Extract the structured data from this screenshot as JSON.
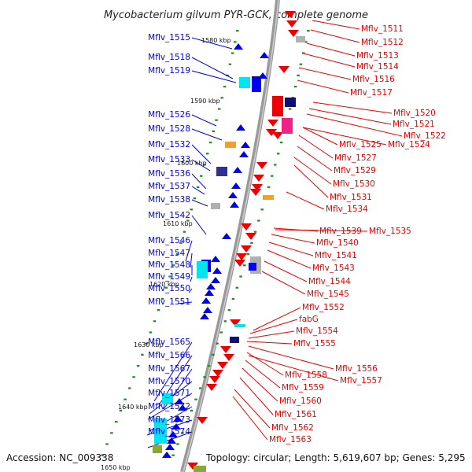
{
  "title": "Mycobacterium gilvum PYR-GCK, complete genome",
  "footer": {
    "accession": "Accession: NC_009338",
    "topology": "Topology: circular; Length: 5,619,607 bp; Genes: 5,295"
  },
  "colors": {
    "forward_strand": "#0000ee",
    "reverse_strand": "#ee0000",
    "backbone": "#909090",
    "tick": "#228b22",
    "cyan_block": "#00e5ee",
    "orange_block": "#f0a030",
    "magenta_block": "#ee2288",
    "navy_block": "#101070",
    "gray_block": "#b0b0b0",
    "olive_block": "#88aa33"
  },
  "kbp_labels": [
    "1580 kbp",
    "1590 kbp",
    "1600 kbp",
    "1610 kbp",
    "1620 kbp",
    "1630 kbp",
    "1640 kbp",
    "1650 kbp"
  ],
  "left_genes": [
    "Mflv_1515",
    "Mflv_1518",
    "Mflv_1519",
    "Mflv_1526",
    "Mflv_1528",
    "Mflv_1532",
    "Mflv_1533",
    "Mflv_1536",
    "Mflv_1537",
    "Mflv_1538",
    "Mflv_1542",
    "Mflv_1546",
    "Mflv_1547",
    "Mflv_1548",
    "Mflv_1549",
    "Mflv_1550",
    "Mflv_1551",
    "Mflv_1565",
    "Mflv_1566",
    "Mflv_1567",
    "Mflv_1570",
    "Mflv_1571",
    "Mflv_1572",
    "Mflv_1573",
    "Mflv_1574"
  ],
  "right_genes": [
    "Mflv_1511",
    "Mflv_1512",
    "Mflv_1513",
    "Mflv_1514",
    "Mflv_1516",
    "Mflv_1517",
    "Mflv_1520",
    "Mflv_1521",
    "Mflv_1522",
    "Mflv_1525",
    "Mflv_1524",
    "Mflv_1527",
    "Mflv_1529",
    "Mflv_1530",
    "Mflv_1531",
    "Mflv_1534",
    "Mflv_1539",
    "Mflv_1535",
    "Mflv_1540",
    "Mflv_1541",
    "Mflv_1543",
    "Mflv_1544",
    "Mflv_1545",
    "Mflv_1552",
    "fabG",
    "Mflv_1554",
    "Mflv_1555",
    "Mflv_1556",
    "Mflv_1558",
    "Mflv_1557",
    "Mflv_1559",
    "Mflv_1560",
    "Mflv_1561",
    "Mflv_1562",
    "Mflv_1563"
  ]
}
